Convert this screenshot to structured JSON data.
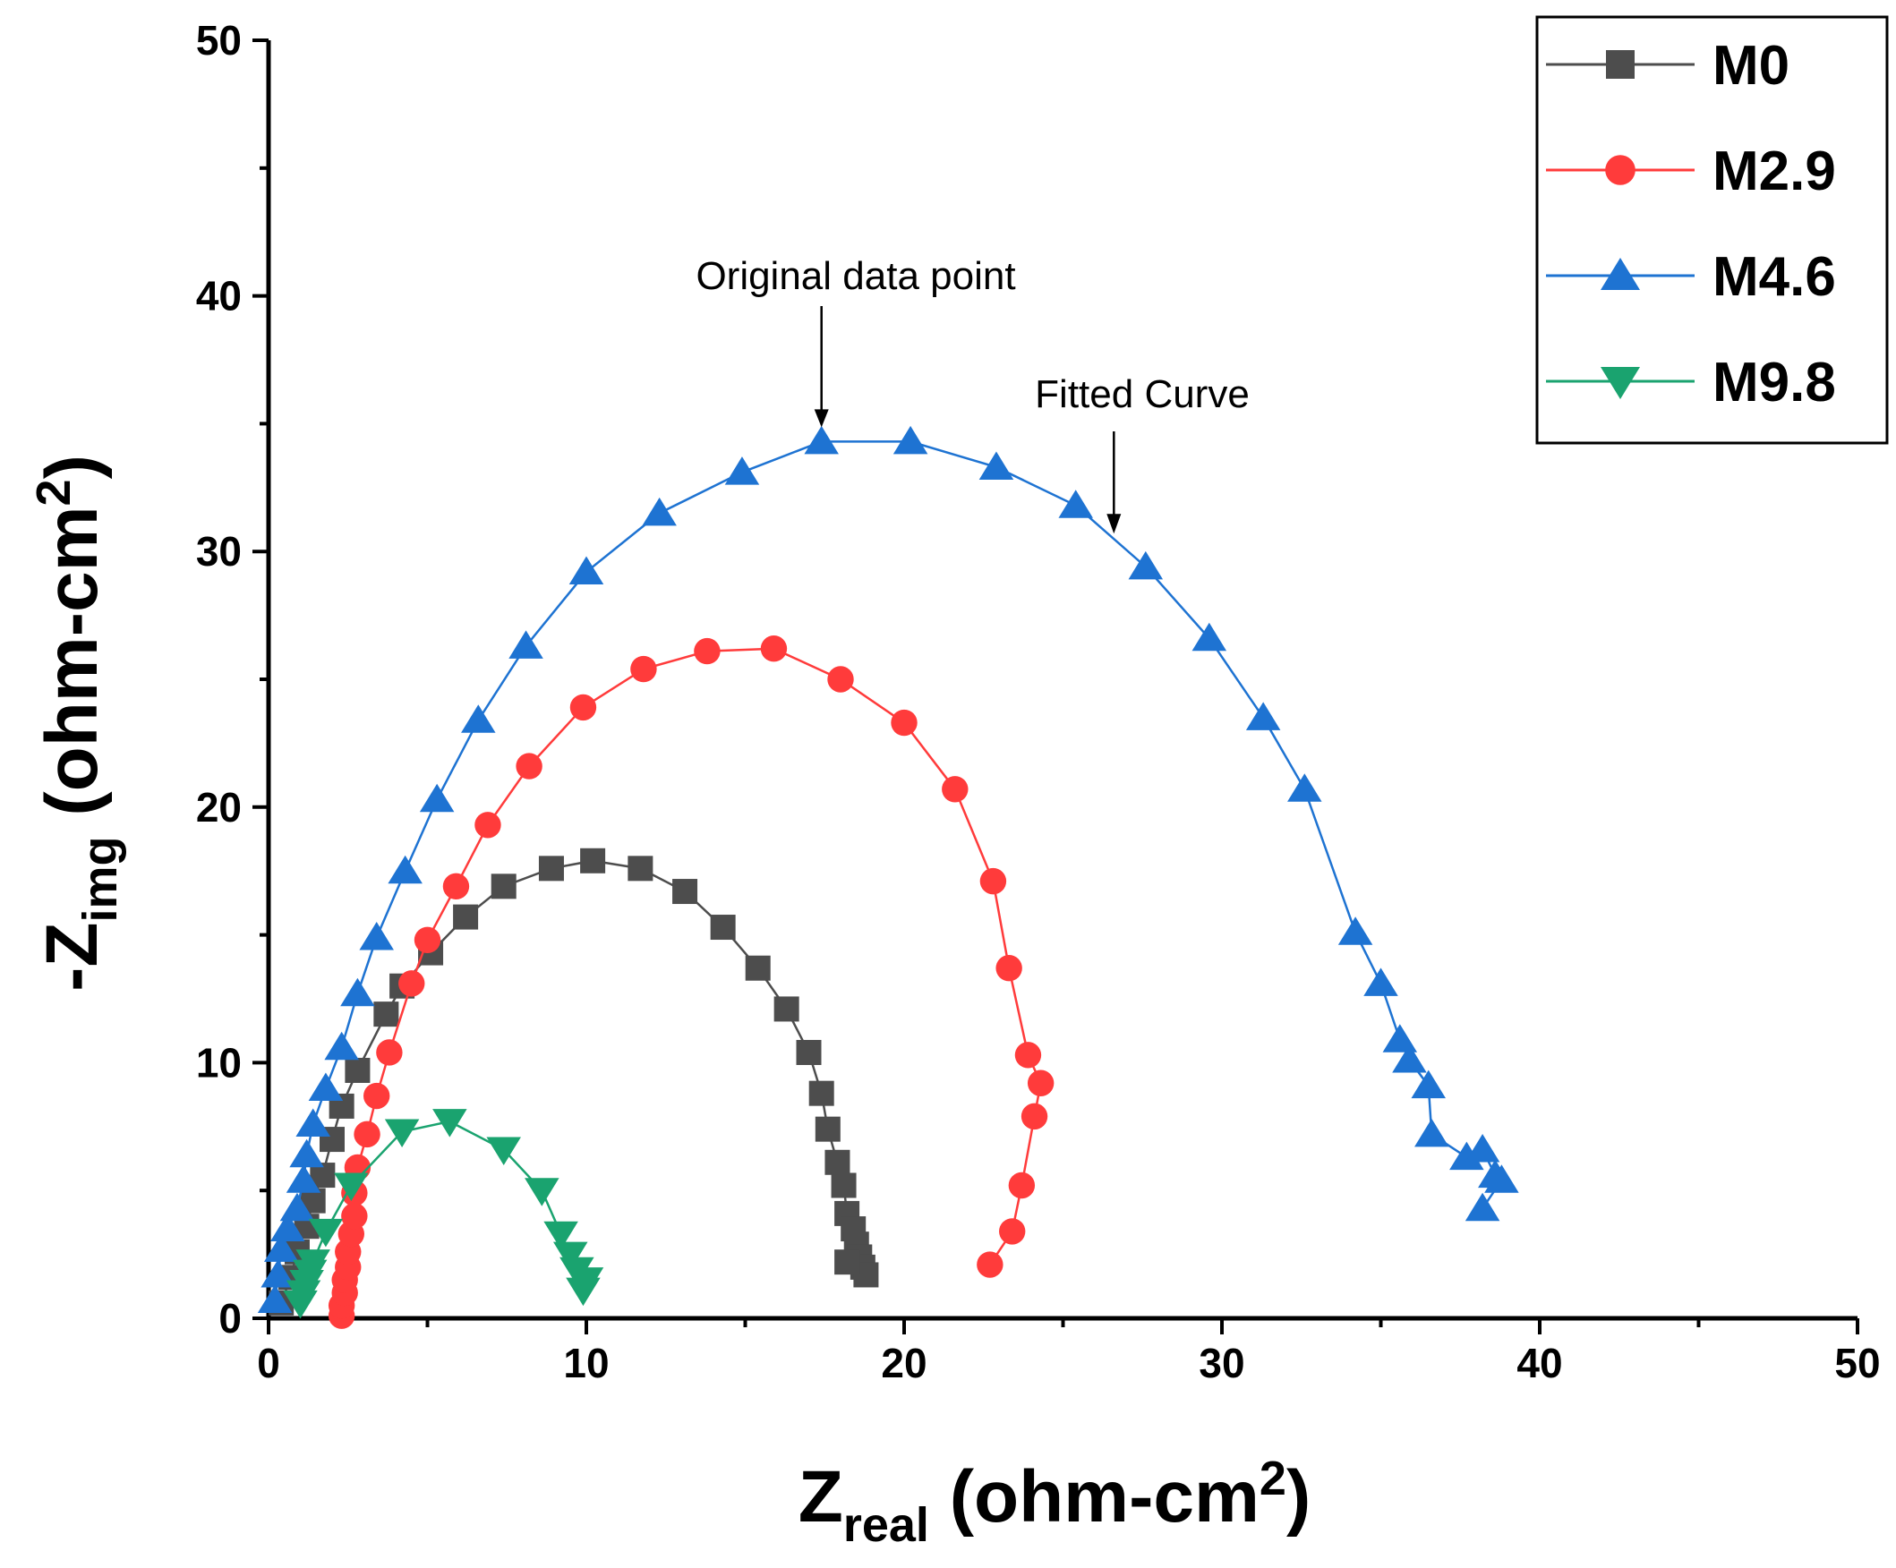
{
  "chart_data": {
    "type": "scatter",
    "xlabel": {
      "main": "Z",
      "sub": "real",
      "unit": " (ohm-cm",
      "sup": "2",
      "close": ")"
    },
    "ylabel": {
      "main": "-Z",
      "sub": "img",
      "unit": " (ohm-cm",
      "sup": "2",
      "close": ")"
    },
    "xlim": [
      0,
      50
    ],
    "ylim": [
      0,
      50
    ],
    "xticks": [
      0,
      10,
      20,
      30,
      40,
      50
    ],
    "yticks": [
      0,
      10,
      20,
      30,
      40,
      50
    ],
    "xtick_labels": [
      "0",
      "10",
      "20",
      "30",
      "40",
      "50"
    ],
    "ytick_labels": [
      "0",
      "10",
      "20",
      "30",
      "40",
      "50"
    ],
    "grid": false,
    "legend_position": "top-right",
    "series": [
      {
        "name": "M0",
        "color": "#4d4d4d",
        "marker": "square",
        "points": [
          [
            0.4,
            0.6
          ],
          [
            0.7,
            1.6
          ],
          [
            0.9,
            2.6
          ],
          [
            1.2,
            3.6
          ],
          [
            1.4,
            4.6
          ],
          [
            1.7,
            5.6
          ],
          [
            2.0,
            7.0
          ],
          [
            2.3,
            8.3
          ],
          [
            2.8,
            9.7
          ],
          [
            3.7,
            11.9
          ],
          [
            4.2,
            13.0
          ],
          [
            5.1,
            14.3
          ],
          [
            6.2,
            15.7
          ],
          [
            7.4,
            16.9
          ],
          [
            8.9,
            17.6
          ],
          [
            10.2,
            17.9
          ],
          [
            11.7,
            17.6
          ],
          [
            13.1,
            16.7
          ],
          [
            14.3,
            15.3
          ],
          [
            15.4,
            13.7
          ],
          [
            16.3,
            12.1
          ],
          [
            17.0,
            10.4
          ],
          [
            17.4,
            8.8
          ],
          [
            17.6,
            7.4
          ],
          [
            17.9,
            6.1
          ],
          [
            18.1,
            5.2
          ],
          [
            18.2,
            4.1
          ],
          [
            18.4,
            3.5
          ],
          [
            18.5,
            2.9
          ],
          [
            18.6,
            2.4
          ],
          [
            18.7,
            2.0
          ],
          [
            18.8,
            1.7
          ],
          [
            18.2,
            2.2
          ]
        ]
      },
      {
        "name": "M2.9",
        "color": "#ff3b3b",
        "marker": "circle",
        "points": [
          [
            2.3,
            0.1
          ],
          [
            2.3,
            0.5
          ],
          [
            2.4,
            1.0
          ],
          [
            2.4,
            1.5
          ],
          [
            2.5,
            2.0
          ],
          [
            2.5,
            2.6
          ],
          [
            2.6,
            3.3
          ],
          [
            2.7,
            4.0
          ],
          [
            2.7,
            4.9
          ],
          [
            2.8,
            5.9
          ],
          [
            3.1,
            7.2
          ],
          [
            3.4,
            8.7
          ],
          [
            3.8,
            10.4
          ],
          [
            4.5,
            13.1
          ],
          [
            5.0,
            14.8
          ],
          [
            5.9,
            16.9
          ],
          [
            6.9,
            19.3
          ],
          [
            8.2,
            21.6
          ],
          [
            9.9,
            23.9
          ],
          [
            11.8,
            25.4
          ],
          [
            13.8,
            26.1
          ],
          [
            15.9,
            26.2
          ],
          [
            18.0,
            25.0
          ],
          [
            20.0,
            23.3
          ],
          [
            21.6,
            20.7
          ],
          [
            22.8,
            17.1
          ],
          [
            23.3,
            13.7
          ],
          [
            23.9,
            10.3
          ],
          [
            24.3,
            9.2
          ],
          [
            24.1,
            7.9
          ],
          [
            23.7,
            5.2
          ],
          [
            23.4,
            3.4
          ],
          [
            22.7,
            2.1
          ]
        ]
      },
      {
        "name": "M4.6",
        "color": "#1e73d2",
        "marker": "triangle-up",
        "points": [
          [
            0.2,
            0.7
          ],
          [
            0.3,
            1.7
          ],
          [
            0.4,
            2.7
          ],
          [
            0.6,
            3.5
          ],
          [
            0.9,
            4.3
          ],
          [
            1.1,
            5.4
          ],
          [
            1.2,
            6.4
          ],
          [
            1.4,
            7.6
          ],
          [
            1.8,
            9.0
          ],
          [
            2.3,
            10.6
          ],
          [
            2.8,
            12.7
          ],
          [
            3.4,
            14.9
          ],
          [
            4.3,
            17.5
          ],
          [
            5.3,
            20.3
          ],
          [
            6.6,
            23.4
          ],
          [
            8.1,
            26.3
          ],
          [
            10.0,
            29.2
          ],
          [
            12.3,
            31.5
          ],
          [
            14.9,
            33.1
          ],
          [
            17.4,
            34.3
          ],
          [
            20.2,
            34.3
          ],
          [
            22.9,
            33.3
          ],
          [
            25.4,
            31.8
          ],
          [
            27.6,
            29.4
          ],
          [
            29.6,
            26.6
          ],
          [
            31.3,
            23.5
          ],
          [
            32.6,
            20.7
          ],
          [
            34.2,
            15.1
          ],
          [
            35.0,
            13.1
          ],
          [
            35.6,
            10.9
          ],
          [
            35.9,
            10.1
          ],
          [
            36.5,
            9.1
          ],
          [
            36.6,
            7.2
          ],
          [
            37.7,
            6.3
          ],
          [
            38.2,
            6.6
          ],
          [
            38.6,
            5.6
          ],
          [
            38.8,
            5.4
          ],
          [
            38.2,
            4.3
          ]
        ]
      },
      {
        "name": "M9.8",
        "color": "#1aa36f",
        "marker": "triangle-down",
        "points": [
          [
            1.0,
            0.6
          ],
          [
            1.1,
            1.0
          ],
          [
            1.2,
            1.4
          ],
          [
            1.3,
            1.8
          ],
          [
            1.4,
            2.2
          ],
          [
            1.8,
            3.4
          ],
          [
            2.6,
            5.2
          ],
          [
            4.2,
            7.3
          ],
          [
            5.7,
            7.7
          ],
          [
            7.4,
            6.6
          ],
          [
            8.6,
            5.0
          ],
          [
            9.2,
            3.3
          ],
          [
            9.5,
            2.5
          ],
          [
            9.7,
            1.9
          ],
          [
            10.0,
            1.5
          ],
          [
            9.9,
            1.1
          ]
        ]
      }
    ],
    "annotations": [
      {
        "text": "Original data point",
        "x": 17.4,
        "y": 34.3
      },
      {
        "text": "Fitted Curve",
        "x": 26.6,
        "y": 30.7
      }
    ]
  }
}
